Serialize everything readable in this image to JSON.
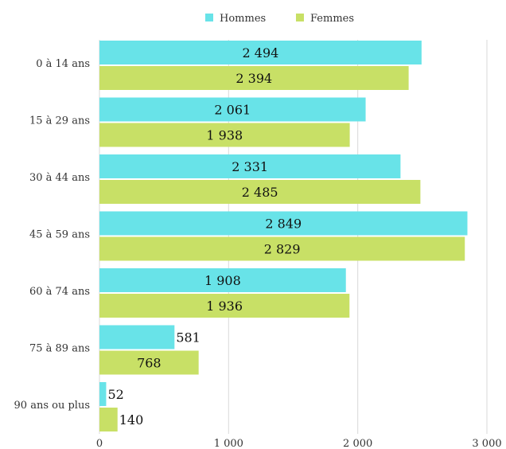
{
  "chart_data": {
    "type": "bar",
    "orientation": "horizontal",
    "categories": [
      "0 à 14 ans",
      "15 à 29 ans",
      "30 à 44 ans",
      "45 à 59 ans",
      "60 à 74 ans",
      "75 à 89 ans",
      "90 ans ou plus"
    ],
    "series": [
      {
        "name": "Hommes",
        "color": "#68e3e8",
        "values": [
          2494,
          2061,
          2331,
          2849,
          1908,
          581,
          52
        ],
        "labels": [
          "2 494",
          "2 061",
          "2 331",
          "2 849",
          "1 908",
          "581",
          "52"
        ]
      },
      {
        "name": "Femmes",
        "color": "#c8e066",
        "values": [
          2394,
          1938,
          2485,
          2829,
          1936,
          768,
          140
        ],
        "labels": [
          "2 394",
          "1 938",
          "2 485",
          "2 829",
          "1 936",
          "768",
          "140"
        ]
      }
    ],
    "xlim": [
      0,
      3000
    ],
    "xticks": [
      0,
      1000,
      2000,
      3000
    ],
    "xtick_labels": [
      "0",
      "1 000",
      "2 000",
      "3 000"
    ],
    "grid": true,
    "legend_position": "top-center",
    "title": "",
    "xlabel": "",
    "ylabel": ""
  }
}
